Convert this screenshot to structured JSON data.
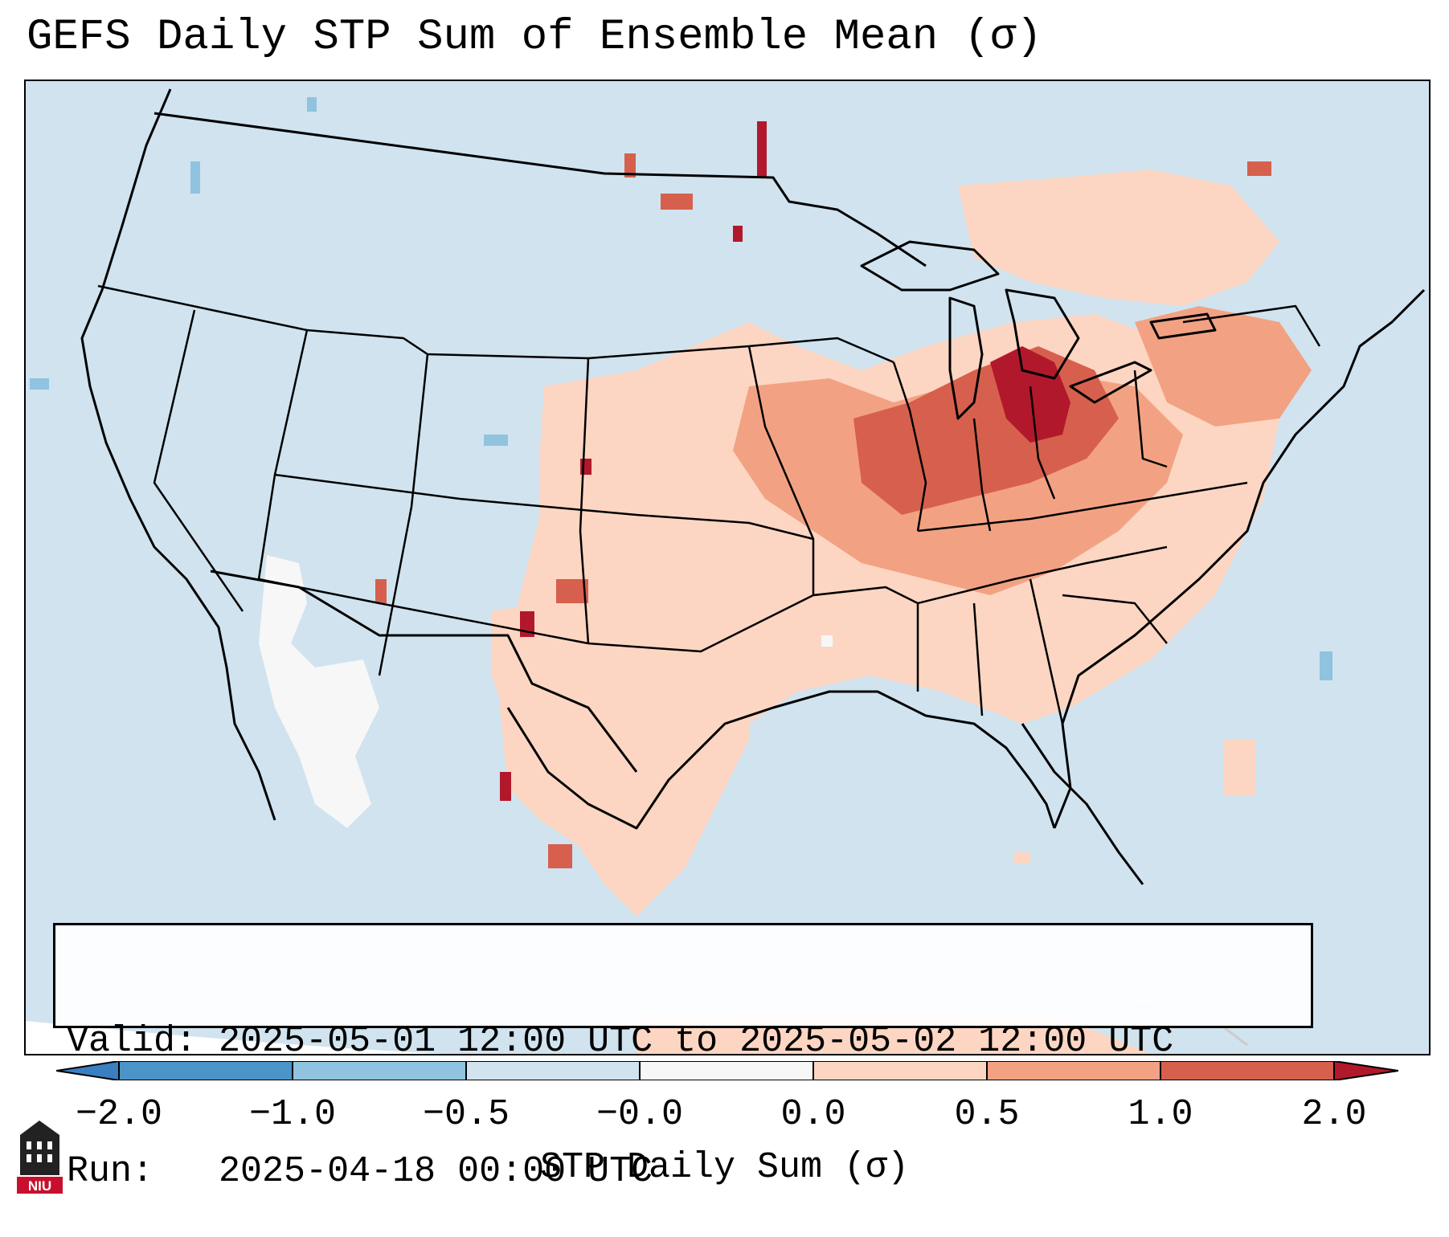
{
  "figure": {
    "title": "GEFS Daily STP Sum of Ensemble Mean (σ)",
    "valid_label": "Valid:",
    "valid_value": "2025-05-01 12:00 UTC to 2025-05-02 12:00 UTC",
    "run_label": "Run:",
    "run_value": "2025-04-18 00:00 UTC",
    "logo_text": "NIU"
  },
  "colorbar": {
    "label": "STP Daily Sum (σ)",
    "ticks": [
      "−2.0",
      "−1.0",
      "−0.5",
      "−0.0",
      "0.0",
      "0.5",
      "1.0",
      "2.0"
    ],
    "bins": [
      {
        "range": "< -2.0",
        "color": "#3a7fbf"
      },
      {
        "range": "-2.0 to -1.0",
        "color": "#4a94c8"
      },
      {
        "range": "-1.0 to -0.5",
        "color": "#90c3df"
      },
      {
        "range": "-0.5 to -0.0",
        "color": "#d0e3ef"
      },
      {
        "range": "-0.0 to 0.0",
        "color": "#f7f7f7"
      },
      {
        "range": "0.0 to 0.5",
        "color": "#fcd6c2"
      },
      {
        "range": "0.5 to 1.0",
        "color": "#f2a283"
      },
      {
        "range": "1.0 to 2.0",
        "color": "#d6604d"
      },
      {
        "range": "> 2.0",
        "color": "#b2182b"
      }
    ]
  },
  "colors": {
    "background": "#d0e3ef",
    "light_red": "#fcd6c2",
    "medium_red": "#f2a283",
    "red": "#d6604d",
    "dark_red": "#b2182b",
    "light_blue": "#90c3df",
    "white": "#f7f7f7"
  }
}
